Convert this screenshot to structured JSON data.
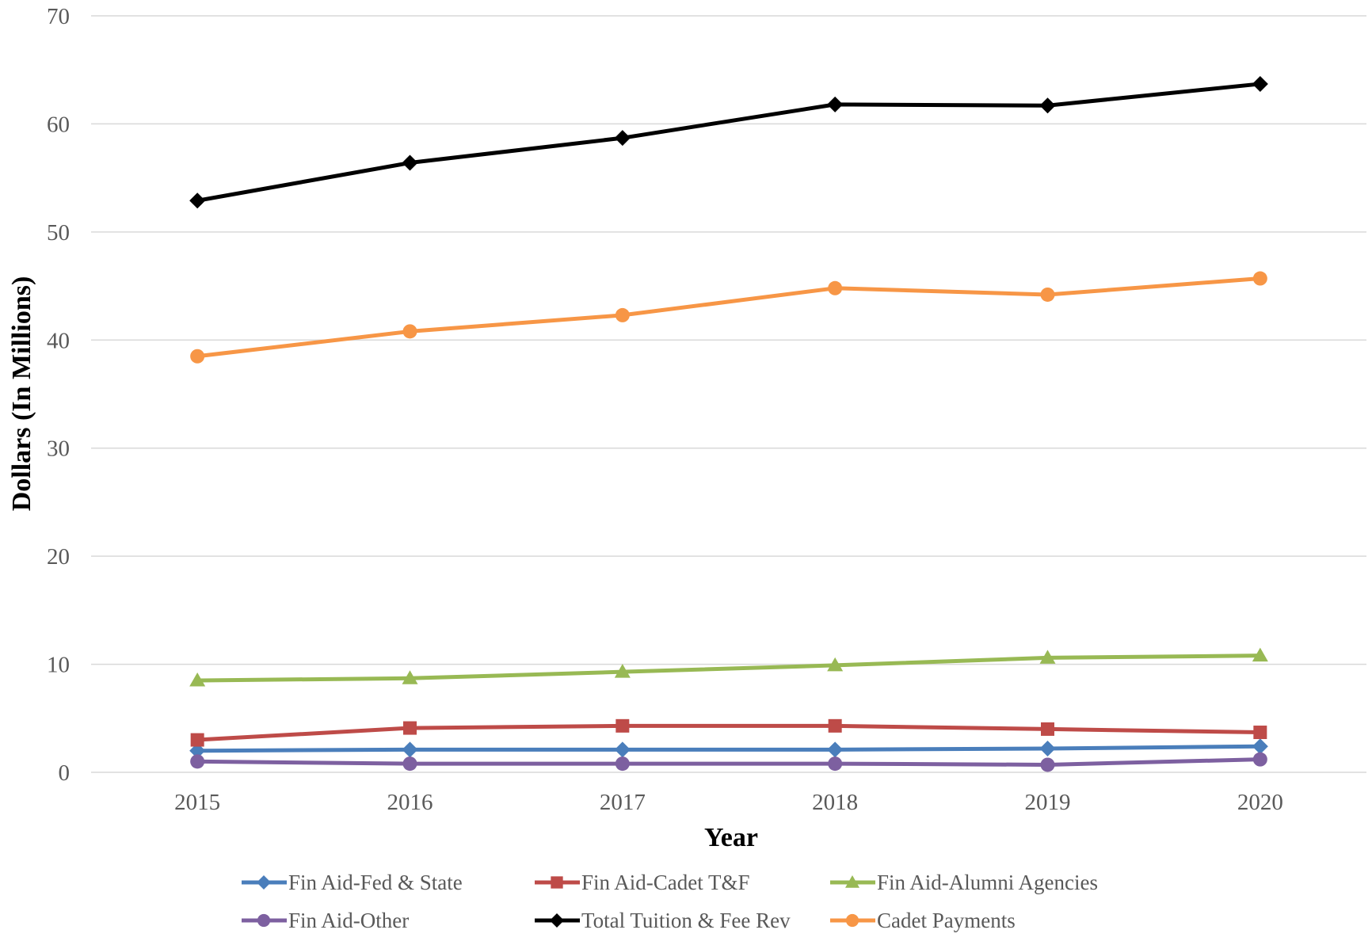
{
  "chart_data": {
    "type": "line",
    "title": "",
    "xlabel": "Year",
    "ylabel": "Dollars (In Millions)",
    "ylim": [
      0,
      70
    ],
    "yticks": [
      "0",
      "10",
      "20",
      "30",
      "40",
      "50",
      "60",
      "70"
    ],
    "grid": true,
    "legend_position": "bottom",
    "categories": [
      "2015",
      "2016",
      "2017",
      "2018",
      "2019",
      "2020"
    ],
    "series": [
      {
        "name": "Fin Aid-Fed & State",
        "color": "#4a7ebb",
        "marker": "diamond",
        "values": [
          2.0,
          2.1,
          2.1,
          2.1,
          2.2,
          2.4
        ]
      },
      {
        "name": "Fin Aid-Cadet T&F",
        "color": "#be4b48",
        "marker": "square",
        "values": [
          3.0,
          4.1,
          4.3,
          4.3,
          4.0,
          3.7
        ]
      },
      {
        "name": "Fin Aid-Alumni Agencies",
        "color": "#98b954",
        "marker": "triangle",
        "values": [
          8.5,
          8.7,
          9.3,
          9.9,
          10.6,
          10.8
        ]
      },
      {
        "name": "Fin Aid-Other",
        "color": "#7d60a0",
        "marker": "circle",
        "values": [
          1.0,
          0.8,
          0.8,
          0.8,
          0.7,
          1.2
        ]
      },
      {
        "name": "Total Tuition & Fee Rev",
        "color": "#000000",
        "marker": "diamond",
        "values": [
          52.9,
          56.4,
          58.7,
          61.8,
          61.7,
          63.7
        ]
      },
      {
        "name": "Cadet Payments",
        "color": "#f79646",
        "marker": "circle",
        "values": [
          38.5,
          40.8,
          42.3,
          44.8,
          44.2,
          45.7
        ]
      }
    ]
  }
}
